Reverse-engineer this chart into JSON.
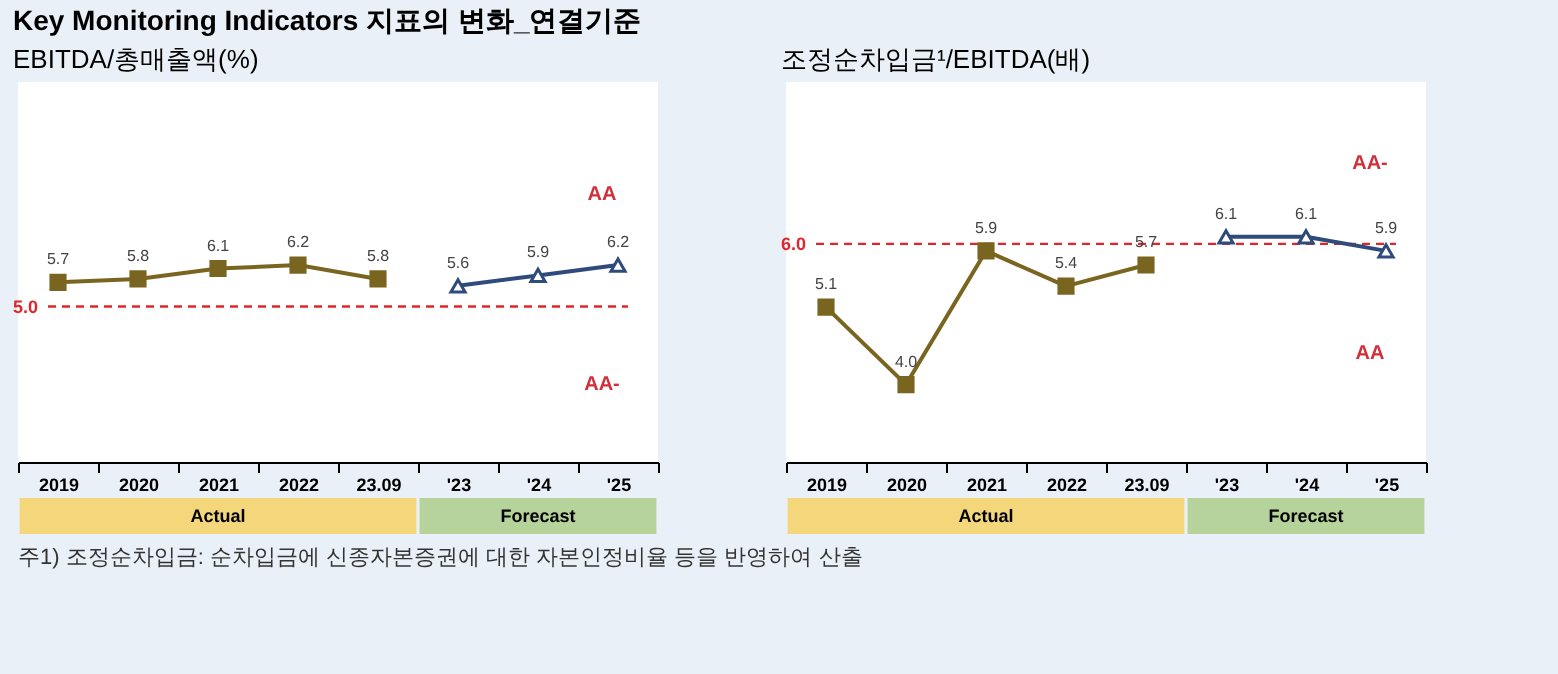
{
  "chart_data": [
    {
      "type": "line",
      "title": "EBITDA/총매출액(%)",
      "categories": [
        "2019",
        "2020",
        "2021",
        "2022",
        "23.09",
        "'23",
        "'24",
        "'25"
      ],
      "ylim": [
        0.5,
        11.5
      ],
      "series": [
        {
          "name": null,
          "color": "#7a6520",
          "marker": "square",
          "values": [
            5.7,
            5.8,
            6.1,
            6.2,
            5.8,
            null,
            null,
            null
          ],
          "value_labels": [
            "5.7",
            "5.8",
            "6.1",
            "6.2",
            "5.8",
            null,
            null,
            null
          ]
        },
        {
          "name": null,
          "color": "#2f4b7c",
          "marker": "triangle",
          "values": [
            null,
            null,
            null,
            null,
            null,
            5.6,
            5.9,
            6.2
          ],
          "value_labels": [
            null,
            null,
            null,
            null,
            null,
            "5.6",
            "5.9",
            "6.2"
          ]
        }
      ],
      "ref_lines": [
        {
          "axis": "y",
          "value": 5.0,
          "label": "5.0",
          "color": "#e0262b",
          "line_style": "dashed"
        }
      ],
      "annotations": [
        "Key Monitoring Indicators 지표의 변화_연결기준",
        "AA",
        "AA-",
        "Actual",
        "Forecast"
      ]
    },
    {
      "type": "line",
      "title": "조정순차입금¹/EBITDA(배)",
      "categories": [
        "2019",
        "2020",
        "2021",
        "2022",
        "23.09",
        "'23",
        "'24",
        "'25"
      ],
      "ylim": [
        2.9,
        8.3
      ],
      "series": [
        {
          "name": null,
          "color": "#7a6520",
          "marker": "square",
          "values": [
            5.1,
            4.0,
            5.9,
            5.4,
            5.7,
            null,
            null,
            null
          ],
          "value_labels": [
            "5.1",
            "4.0",
            "5.9",
            "5.4",
            "5.7",
            null,
            null,
            null
          ]
        },
        {
          "name": null,
          "color": "#2f4b7c",
          "marker": "triangle",
          "values": [
            null,
            null,
            null,
            null,
            null,
            6.1,
            6.1,
            5.9
          ],
          "value_labels": [
            null,
            null,
            null,
            null,
            null,
            "6.1",
            "6.1",
            "5.9"
          ]
        }
      ],
      "ref_lines": [
        {
          "axis": "y",
          "value": 6.0,
          "label": "6.0",
          "color": "#e0262b",
          "line_style": "dashed"
        }
      ],
      "annotations": [
        "AA-",
        "AA",
        "Actual",
        "Forecast",
        "주1) 조정순차입금: 순차입금에 신종자본증권에 대한 자본인정비율 등을 반영하여 산출"
      ]
    }
  ]
}
